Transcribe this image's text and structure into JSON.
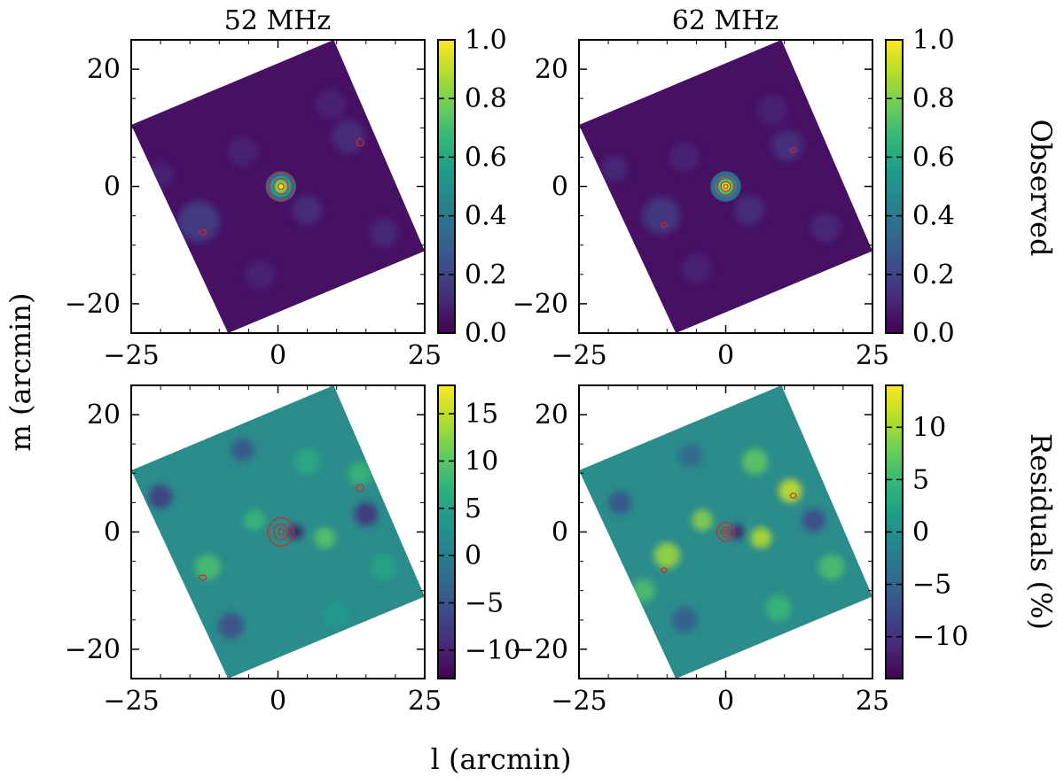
{
  "figure": {
    "xlabel": "l (arcmin)",
    "ylabel": "m (arcmin)",
    "row_labels": [
      "Observed",
      "Residuals (%)"
    ],
    "column_titles": [
      "52 MHz",
      "62 MHz"
    ]
  },
  "colors": {
    "viridis": [
      "#440154",
      "#482878",
      "#3e4989",
      "#31688e",
      "#26828e",
      "#1f9e89",
      "#35b779",
      "#6ece58",
      "#b5de2b",
      "#fde725"
    ],
    "contour": "#d62728",
    "observed_background": "#471063",
    "residual_background": "#2a8c8b"
  },
  "chart_data": [
    {
      "type": "heatmap",
      "title": "52 MHz",
      "xlabel": "",
      "ylabel": "",
      "xlim": [
        -25,
        25
      ],
      "ylim": [
        -25,
        25
      ],
      "xticks": [
        -25,
        0,
        25
      ],
      "yticks": [
        -20,
        0,
        20
      ],
      "footprint_corners": [
        [
          -25,
          10.5
        ],
        [
          9.5,
          25
        ],
        [
          25,
          -11
        ],
        [
          -8.5,
          -25
        ]
      ],
      "source": {
        "l": 0.5,
        "m": 0
      },
      "contours": [
        {
          "l": 0.5,
          "m": 0,
          "rx": 2.2,
          "ry": 2.4
        },
        {
          "l": 0.5,
          "m": 0,
          "rx": 1.2,
          "ry": 1.3
        },
        {
          "l": 0.5,
          "m": 0,
          "rx": 0.5,
          "ry": 0.5
        },
        {
          "l": 14,
          "m": 7.5,
          "rx": 0.6,
          "ry": 0.6
        },
        {
          "l": -12.8,
          "m": -7.8,
          "rx": 0.6,
          "ry": 0.45
        }
      ],
      "blobs": [
        {
          "l": -13.5,
          "m": -6,
          "r": 3.5,
          "v": 0.2
        },
        {
          "l": 12,
          "m": 8.5,
          "r": 2.8,
          "v": 0.15
        },
        {
          "l": -20,
          "m": 2,
          "r": 2.2,
          "v": 0.1
        },
        {
          "l": 5,
          "m": -4,
          "r": 2.5,
          "v": 0.15
        },
        {
          "l": -6,
          "m": 6,
          "r": 2.5,
          "v": 0.1
        },
        {
          "l": 18,
          "m": -8,
          "r": 2.5,
          "v": 0.12
        },
        {
          "l": -3,
          "m": -15,
          "r": 2.5,
          "v": 0.1
        },
        {
          "l": 9,
          "m": 14,
          "r": 2.5,
          "v": 0.1
        }
      ],
      "colorbar": {
        "min": 0.0,
        "max": 1.0,
        "ticks": [
          "0.0",
          "0.2",
          "0.4",
          "0.6",
          "0.8",
          "1.0"
        ],
        "tick_values": [
          0,
          0.2,
          0.4,
          0.6,
          0.8,
          1.0
        ]
      }
    },
    {
      "type": "heatmap",
      "title": "62 MHz",
      "xlabel": "",
      "ylabel": "",
      "xlim": [
        -25,
        25
      ],
      "ylim": [
        -25,
        25
      ],
      "xticks": [
        -25,
        0,
        25
      ],
      "yticks": [
        -20,
        0,
        20
      ],
      "footprint_corners": [
        [
          -25,
          10.5
        ],
        [
          9.5,
          25
        ],
        [
          25,
          -11
        ],
        [
          -8.5,
          -25
        ]
      ],
      "source": {
        "l": 0,
        "m": 0
      },
      "contours": [
        {
          "l": 0,
          "m": 0,
          "rx": 1.5,
          "ry": 1.6
        },
        {
          "l": 0,
          "m": 0,
          "rx": 0.8,
          "ry": 0.85
        },
        {
          "l": 0,
          "m": 0,
          "rx": 0.35,
          "ry": 0.35
        },
        {
          "l": 11.5,
          "m": 6.2,
          "rx": 0.5,
          "ry": 0.4
        },
        {
          "l": -10.5,
          "m": -6.5,
          "rx": 0.45,
          "ry": 0.4
        }
      ],
      "blobs": [
        {
          "l": -11,
          "m": -5,
          "r": 3.2,
          "v": 0.18
        },
        {
          "l": 10.5,
          "m": 7,
          "r": 2.6,
          "v": 0.16
        },
        {
          "l": -19,
          "m": 3,
          "r": 2.2,
          "v": 0.12
        },
        {
          "l": 4,
          "m": -4,
          "r": 2.5,
          "v": 0.14
        },
        {
          "l": -7,
          "m": 5,
          "r": 2.5,
          "v": 0.1
        },
        {
          "l": 17,
          "m": -7,
          "r": 2.5,
          "v": 0.11
        },
        {
          "l": -5,
          "m": -14,
          "r": 2.5,
          "v": 0.1
        },
        {
          "l": 8,
          "m": 13,
          "r": 2.5,
          "v": 0.1
        }
      ],
      "colorbar": {
        "min": 0.0,
        "max": 1.0,
        "ticks": [
          "0.0",
          "0.2",
          "0.4",
          "0.6",
          "0.8",
          "1.0"
        ],
        "tick_values": [
          0,
          0.2,
          0.4,
          0.6,
          0.8,
          1.0
        ]
      }
    },
    {
      "type": "heatmap",
      "title": "",
      "xlabel": "",
      "ylabel": "",
      "xlim": [
        -25,
        25
      ],
      "ylim": [
        -25,
        25
      ],
      "xticks": [
        -25,
        0,
        25
      ],
      "yticks": [
        -20,
        0,
        20
      ],
      "footprint_corners": [
        [
          -25,
          10.5
        ],
        [
          9.5,
          25
        ],
        [
          25,
          -11
        ],
        [
          -8.5,
          -25
        ]
      ],
      "source": {
        "l": 0.5,
        "m": 0
      },
      "contours": [
        {
          "l": 0.5,
          "m": 0,
          "rx": 2.2,
          "ry": 2.4
        },
        {
          "l": 0.5,
          "m": 0,
          "rx": 1.2,
          "ry": 1.3
        },
        {
          "l": 0.5,
          "m": 0,
          "rx": 0.5,
          "ry": 0.5
        },
        {
          "l": 14,
          "m": 7.5,
          "rx": 0.6,
          "ry": 0.6
        },
        {
          "l": -12.8,
          "m": -7.8,
          "rx": 0.6,
          "ry": 0.45
        }
      ],
      "blobs": [
        {
          "l": 3,
          "m": 0,
          "r": 1.2,
          "v": -12
        },
        {
          "l": 8,
          "m": -1,
          "r": 1.8,
          "v": 10
        },
        {
          "l": -4,
          "m": 2,
          "r": 1.8,
          "v": 8
        },
        {
          "l": -12,
          "m": -6,
          "r": 2.2,
          "v": 9
        },
        {
          "l": 14,
          "m": 10,
          "r": 2,
          "v": 8
        },
        {
          "l": 15,
          "m": 3,
          "r": 2,
          "v": -9
        },
        {
          "l": -20,
          "m": 6,
          "r": 2,
          "v": -8
        },
        {
          "l": 5,
          "m": 12,
          "r": 2.2,
          "v": 6
        },
        {
          "l": -8,
          "m": -16,
          "r": 2.2,
          "v": -6
        },
        {
          "l": 18,
          "m": -6,
          "r": 2.2,
          "v": 5
        },
        {
          "l": -6,
          "m": 14,
          "r": 2,
          "v": -5
        },
        {
          "l": 10,
          "m": -14,
          "r": 2.2,
          "v": 4
        }
      ],
      "colorbar": {
        "min": -13,
        "max": 18,
        "ticks": [
          "−10",
          "−5",
          "0",
          "5",
          "10",
          "15"
        ],
        "tick_values": [
          -10,
          -5,
          0,
          5,
          10,
          15
        ]
      }
    },
    {
      "type": "heatmap",
      "title": "",
      "xlabel": "",
      "ylabel": "",
      "xlim": [
        -25,
        25
      ],
      "ylim": [
        -25,
        25
      ],
      "xticks": [
        -25,
        0,
        25
      ],
      "yticks": [
        -20,
        0,
        20
      ],
      "footprint_corners": [
        [
          -25,
          10.5
        ],
        [
          9.5,
          25
        ],
        [
          25,
          -11
        ],
        [
          -8.5,
          -25
        ]
      ],
      "source": {
        "l": 0,
        "m": 0
      },
      "contours": [
        {
          "l": 0,
          "m": 0,
          "rx": 1.5,
          "ry": 1.6
        },
        {
          "l": 0,
          "m": 0,
          "rx": 0.8,
          "ry": 0.85
        },
        {
          "l": 0,
          "m": 0,
          "rx": 0.35,
          "ry": 0.35
        },
        {
          "l": 11.5,
          "m": 6.2,
          "rx": 0.5,
          "ry": 0.4
        },
        {
          "l": -10.5,
          "m": -6.5,
          "rx": 0.45,
          "ry": 0.4
        }
      ],
      "blobs": [
        {
          "l": 2,
          "m": 0,
          "r": 1.2,
          "v": -12
        },
        {
          "l": 6,
          "m": -1,
          "r": 1.8,
          "v": 11
        },
        {
          "l": -4,
          "m": 2,
          "r": 1.8,
          "v": 9
        },
        {
          "l": -10,
          "m": -4,
          "r": 2.2,
          "v": 10
        },
        {
          "l": 11,
          "m": 7,
          "r": 2,
          "v": 12
        },
        {
          "l": 15,
          "m": 2,
          "r": 2,
          "v": -8
        },
        {
          "l": -18,
          "m": 5,
          "r": 2,
          "v": -7
        },
        {
          "l": 5,
          "m": 12,
          "r": 2.2,
          "v": 7
        },
        {
          "l": -7,
          "m": -15,
          "r": 2.2,
          "v": -6
        },
        {
          "l": 18,
          "m": -6,
          "r": 2.2,
          "v": 6
        },
        {
          "l": -6,
          "m": 13,
          "r": 2,
          "v": -5
        },
        {
          "l": 9,
          "m": -13,
          "r": 2.2,
          "v": 5
        },
        {
          "l": -14,
          "m": -10,
          "r": 2,
          "v": 6
        }
      ],
      "colorbar": {
        "min": -14,
        "max": 14,
        "ticks": [
          "−10",
          "−5",
          "0",
          "5",
          "10"
        ],
        "tick_values": [
          -10,
          -5,
          0,
          5,
          10
        ]
      }
    }
  ]
}
